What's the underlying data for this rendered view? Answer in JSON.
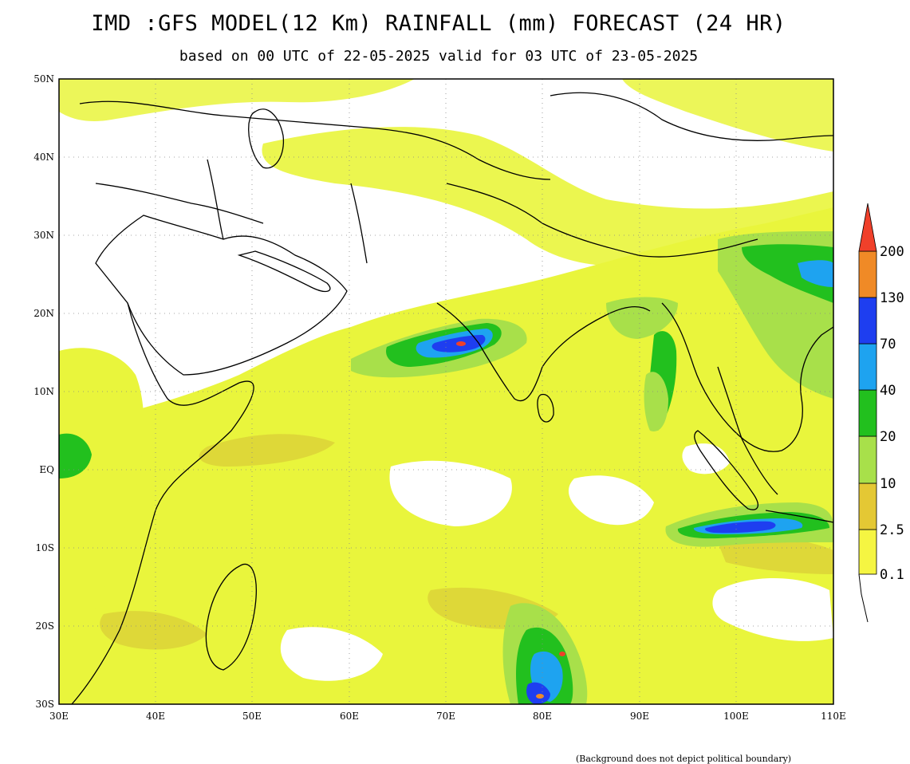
{
  "title": "IMD :GFS MODEL(12 Km) RAINFALL (mm) FORECAST (24 HR)",
  "subtitle": "based on 00 UTC of 22-05-2025 valid for 03 UTC of 23-05-2025",
  "footnote": "(Background does not depict political boundary)",
  "axes": {
    "lat_labels": [
      "50N",
      "40N",
      "30N",
      "20N",
      "10N",
      "EQ",
      "10S",
      "20S",
      "30S"
    ],
    "lon_labels": [
      "30E",
      "40E",
      "50E",
      "60E",
      "70E",
      "80E",
      "90E",
      "100E",
      "110E"
    ],
    "lon_range": [
      30,
      110
    ],
    "lat_range": [
      -30,
      50
    ]
  },
  "legend": {
    "levels": [
      "0.1",
      "2.5",
      "10",
      "20",
      "40",
      "70",
      "130",
      "200"
    ],
    "colors": [
      "#f5f542",
      "#e4c834",
      "#a8e04a",
      "#22c01e",
      "#1ea3f0",
      "#1e3ef0",
      "#f08a26",
      "#f0402a"
    ]
  },
  "colors": {
    "light_rain": "#e9f53c",
    "moderate": "#d8cc36",
    "coast": "#000000",
    "grid": "#888888"
  }
}
